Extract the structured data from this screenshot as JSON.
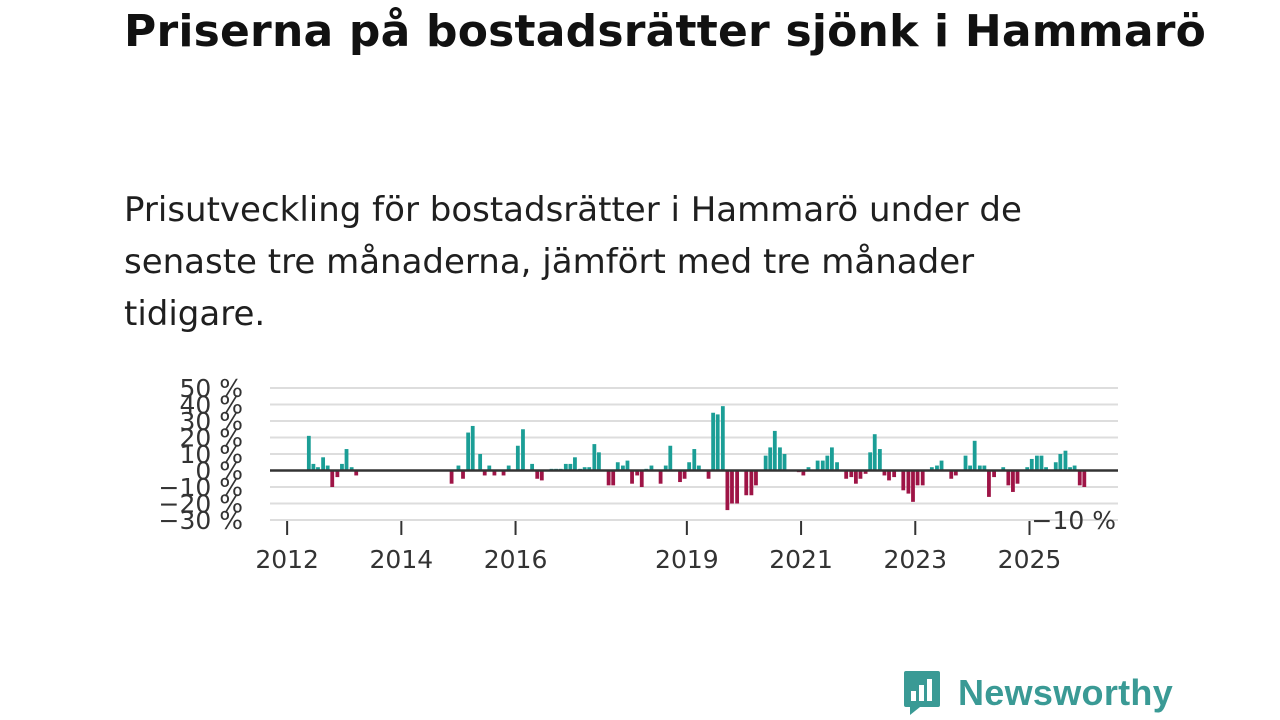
{
  "title": "Priserna på bostadsrätter sjönk i Hammarö",
  "subtitle": "Prisutveckling för bostadsrätter i Hammarö under de senaste tre månaderna, jämfört med tre månader tidigare.",
  "colors": {
    "positive": "#1b9e96",
    "negative": "#9e1446",
    "grid": "#dddddd",
    "zero": "#333333"
  },
  "brand": {
    "name": "Newsworthy",
    "color": "#3a9a95",
    "icon": "bar-chart-speech-icon"
  },
  "chart_data": {
    "type": "bar",
    "title": "Priserna på bostadsrätter sjönk i Hammarö",
    "ylabel": "",
    "xlabel": "",
    "ylim": [
      -30,
      50
    ],
    "yticks": [
      -30,
      -20,
      -10,
      0,
      10,
      20,
      30,
      40,
      50
    ],
    "ytick_labels": [
      "−30 %",
      "−20 %",
      "−10 %",
      "0 %",
      "10 %",
      "20 %",
      "30 %",
      "40 %",
      "50 %"
    ],
    "xticks": [
      2012,
      2014,
      2016,
      2019,
      2021,
      2023,
      2025
    ],
    "xlim": [
      2011.7,
      2026.55
    ],
    "annotation": "−10 %",
    "series": [
      {
        "name": "Prisutveckling",
        "points": [
          [
            2012.38,
            21
          ],
          [
            2012.46,
            4
          ],
          [
            2012.54,
            2
          ],
          [
            2012.63,
            8
          ],
          [
            2012.71,
            3
          ],
          [
            2012.79,
            -10
          ],
          [
            2012.88,
            -4
          ],
          [
            2012.96,
            4
          ],
          [
            2013.04,
            13
          ],
          [
            2013.13,
            2
          ],
          [
            2013.21,
            -3
          ],
          [
            2014.88,
            -8
          ],
          [
            2015.0,
            3
          ],
          [
            2015.08,
            -5
          ],
          [
            2015.17,
            23
          ],
          [
            2015.25,
            27
          ],
          [
            2015.38,
            10
          ],
          [
            2015.46,
            -3
          ],
          [
            2015.54,
            3
          ],
          [
            2015.63,
            -3
          ],
          [
            2015.79,
            -3
          ],
          [
            2015.88,
            3
          ],
          [
            2016.04,
            15
          ],
          [
            2016.13,
            25
          ],
          [
            2016.29,
            4
          ],
          [
            2016.38,
            -5
          ],
          [
            2016.46,
            -6
          ],
          [
            2016.63,
            1
          ],
          [
            2016.71,
            1
          ],
          [
            2016.79,
            1
          ],
          [
            2016.88,
            4
          ],
          [
            2016.96,
            4
          ],
          [
            2017.04,
            8
          ],
          [
            2017.13,
            1
          ],
          [
            2017.21,
            2
          ],
          [
            2017.29,
            2
          ],
          [
            2017.38,
            16
          ],
          [
            2017.46,
            11
          ],
          [
            2017.63,
            -9
          ],
          [
            2017.71,
            -9
          ],
          [
            2017.79,
            5
          ],
          [
            2017.88,
            3
          ],
          [
            2017.96,
            6
          ],
          [
            2018.04,
            -8
          ],
          [
            2018.13,
            -3
          ],
          [
            2018.21,
            -10
          ],
          [
            2018.29,
            1
          ],
          [
            2018.38,
            3
          ],
          [
            2018.54,
            -8
          ],
          [
            2018.63,
            3
          ],
          [
            2018.71,
            15
          ],
          [
            2018.88,
            -7
          ],
          [
            2018.96,
            -5
          ],
          [
            2019.04,
            5
          ],
          [
            2019.13,
            13
          ],
          [
            2019.21,
            3
          ],
          [
            2019.38,
            -5
          ],
          [
            2019.46,
            35
          ],
          [
            2019.54,
            34
          ],
          [
            2019.63,
            39
          ],
          [
            2019.71,
            -24
          ],
          [
            2019.79,
            -20
          ],
          [
            2019.88,
            -20
          ],
          [
            2020.04,
            -15
          ],
          [
            2020.13,
            -15
          ],
          [
            2020.21,
            -9
          ],
          [
            2020.38,
            9
          ],
          [
            2020.46,
            14
          ],
          [
            2020.54,
            24
          ],
          [
            2020.63,
            14
          ],
          [
            2020.71,
            10
          ],
          [
            2020.96,
            -1
          ],
          [
            2021.04,
            -3
          ],
          [
            2021.13,
            2
          ],
          [
            2021.29,
            6
          ],
          [
            2021.38,
            6
          ],
          [
            2021.46,
            9
          ],
          [
            2021.54,
            14
          ],
          [
            2021.63,
            5
          ],
          [
            2021.79,
            -5
          ],
          [
            2021.88,
            -4
          ],
          [
            2021.96,
            -8
          ],
          [
            2022.04,
            -5
          ],
          [
            2022.13,
            -2
          ],
          [
            2022.21,
            11
          ],
          [
            2022.29,
            22
          ],
          [
            2022.38,
            13
          ],
          [
            2022.46,
            -3
          ],
          [
            2022.54,
            -6
          ],
          [
            2022.63,
            -4
          ],
          [
            2022.79,
            -12
          ],
          [
            2022.88,
            -14
          ],
          [
            2022.96,
            -19
          ],
          [
            2023.04,
            -9
          ],
          [
            2023.13,
            -9
          ],
          [
            2023.29,
            2
          ],
          [
            2023.38,
            3
          ],
          [
            2023.46,
            6
          ],
          [
            2023.63,
            -5
          ],
          [
            2023.71,
            -3
          ],
          [
            2023.88,
            9
          ],
          [
            2023.96,
            3
          ],
          [
            2024.04,
            18
          ],
          [
            2024.13,
            3
          ],
          [
            2024.21,
            3
          ],
          [
            2024.29,
            -16
          ],
          [
            2024.38,
            -4
          ],
          [
            2024.54,
            2
          ],
          [
            2024.63,
            -9
          ],
          [
            2024.71,
            -13
          ],
          [
            2024.79,
            -8
          ],
          [
            2024.96,
            2
          ],
          [
            2025.04,
            7
          ],
          [
            2025.13,
            9
          ],
          [
            2025.21,
            9
          ],
          [
            2025.29,
            2
          ],
          [
            2025.46,
            5
          ],
          [
            2025.54,
            10
          ],
          [
            2025.63,
            12
          ],
          [
            2025.71,
            2
          ],
          [
            2025.79,
            3
          ],
          [
            2025.88,
            -9
          ],
          [
            2025.96,
            -10
          ]
        ]
      }
    ]
  }
}
